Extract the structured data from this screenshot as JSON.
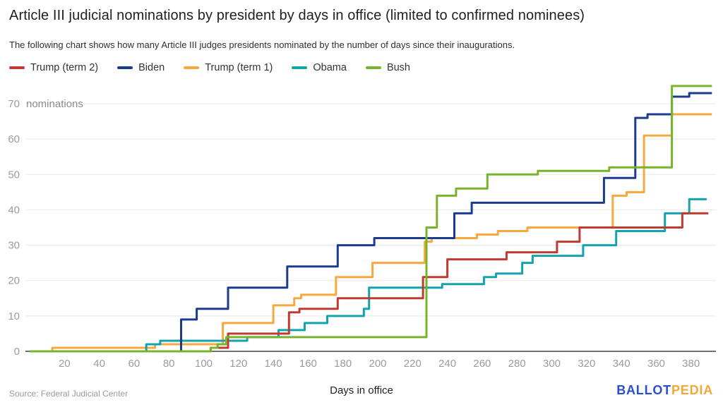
{
  "header": {
    "title": "Article III judicial nominations by president by days in office (limited to confirmed nominees)",
    "subtitle": "The following chart shows how many Article III judges presidents nominated by the number of days since their inaugurations."
  },
  "footer": {
    "source": "Source: Federal Judicial Center",
    "xlabel": "Days in office",
    "brand_part1": "BALLOT",
    "brand_part2": "PEDIA"
  },
  "chart_data": {
    "type": "line",
    "line_style": "step-after",
    "title": "Article III judicial nominations by president by days in office (limited to confirmed nominees)",
    "xlabel": "Days in office",
    "ylabel": "nominations",
    "xlim": [
      0,
      395
    ],
    "ylim": [
      0,
      76
    ],
    "x_ticks": [
      20,
      40,
      60,
      80,
      100,
      120,
      140,
      160,
      180,
      200,
      220,
      240,
      260,
      280,
      300,
      320,
      340,
      360,
      380
    ],
    "y_ticks": [
      0,
      10,
      20,
      30,
      40,
      50,
      60,
      70
    ],
    "grid": true,
    "legend_position": "top-left",
    "series": [
      {
        "name": "Trump (term 2)",
        "color": "#bf3b32",
        "end_day": 390,
        "points": [
          [
            0,
            0
          ],
          [
            104,
            1
          ],
          [
            114,
            5
          ],
          [
            149,
            11
          ],
          [
            155,
            12
          ],
          [
            177,
            15
          ],
          [
            226,
            21
          ],
          [
            240,
            26
          ],
          [
            274,
            28
          ],
          [
            303,
            31
          ],
          [
            316,
            35
          ],
          [
            375,
            39
          ]
        ]
      },
      {
        "name": "Biden",
        "color": "#1c3a8e",
        "end_day": 392,
        "points": [
          [
            0,
            0
          ],
          [
            87,
            9
          ],
          [
            96,
            12
          ],
          [
            114,
            18
          ],
          [
            148,
            24
          ],
          [
            177,
            30
          ],
          [
            198,
            32
          ],
          [
            244,
            39
          ],
          [
            254,
            42
          ],
          [
            330,
            49
          ],
          [
            348,
            66
          ],
          [
            355,
            67
          ],
          [
            369,
            72
          ],
          [
            379,
            73
          ]
        ]
      },
      {
        "name": "Trump (term 1)",
        "color": "#f7a83e",
        "end_day": 392,
        "points": [
          [
            0,
            0
          ],
          [
            13,
            1
          ],
          [
            72,
            2
          ],
          [
            111,
            8
          ],
          [
            140,
            13
          ],
          [
            152,
            15
          ],
          [
            156,
            16
          ],
          [
            176,
            21
          ],
          [
            197,
            25
          ],
          [
            227,
            31
          ],
          [
            231,
            32
          ],
          [
            257,
            33
          ],
          [
            269,
            34
          ],
          [
            286,
            35
          ],
          [
            335,
            44
          ],
          [
            343,
            45
          ],
          [
            353,
            61
          ],
          [
            369,
            67
          ]
        ]
      },
      {
        "name": "Obama",
        "color": "#13a3ae",
        "end_day": 389,
        "points": [
          [
            0,
            0
          ],
          [
            67,
            2
          ],
          [
            75,
            3
          ],
          [
            125,
            4
          ],
          [
            143,
            6
          ],
          [
            158,
            8
          ],
          [
            171,
            10
          ],
          [
            192,
            12
          ],
          [
            195,
            18
          ],
          [
            237,
            19
          ],
          [
            261,
            21
          ],
          [
            268,
            22
          ],
          [
            283,
            25
          ],
          [
            289,
            27
          ],
          [
            318,
            30
          ],
          [
            337,
            34
          ],
          [
            365,
            39
          ],
          [
            379,
            43
          ]
        ]
      },
      {
        "name": "Bush",
        "color": "#77b42c",
        "end_day": 392,
        "points": [
          [
            0,
            0
          ],
          [
            104,
            1
          ],
          [
            108,
            2
          ],
          [
            113,
            4
          ],
          [
            228,
            35
          ],
          [
            234,
            44
          ],
          [
            245,
            46
          ],
          [
            263,
            50
          ],
          [
            292,
            51
          ],
          [
            333,
            52
          ],
          [
            369,
            75
          ]
        ]
      }
    ],
    "draw_order": [
      "Trump (term 1)",
      "Obama",
      "Trump (term 2)",
      "Biden",
      "Bush"
    ]
  }
}
